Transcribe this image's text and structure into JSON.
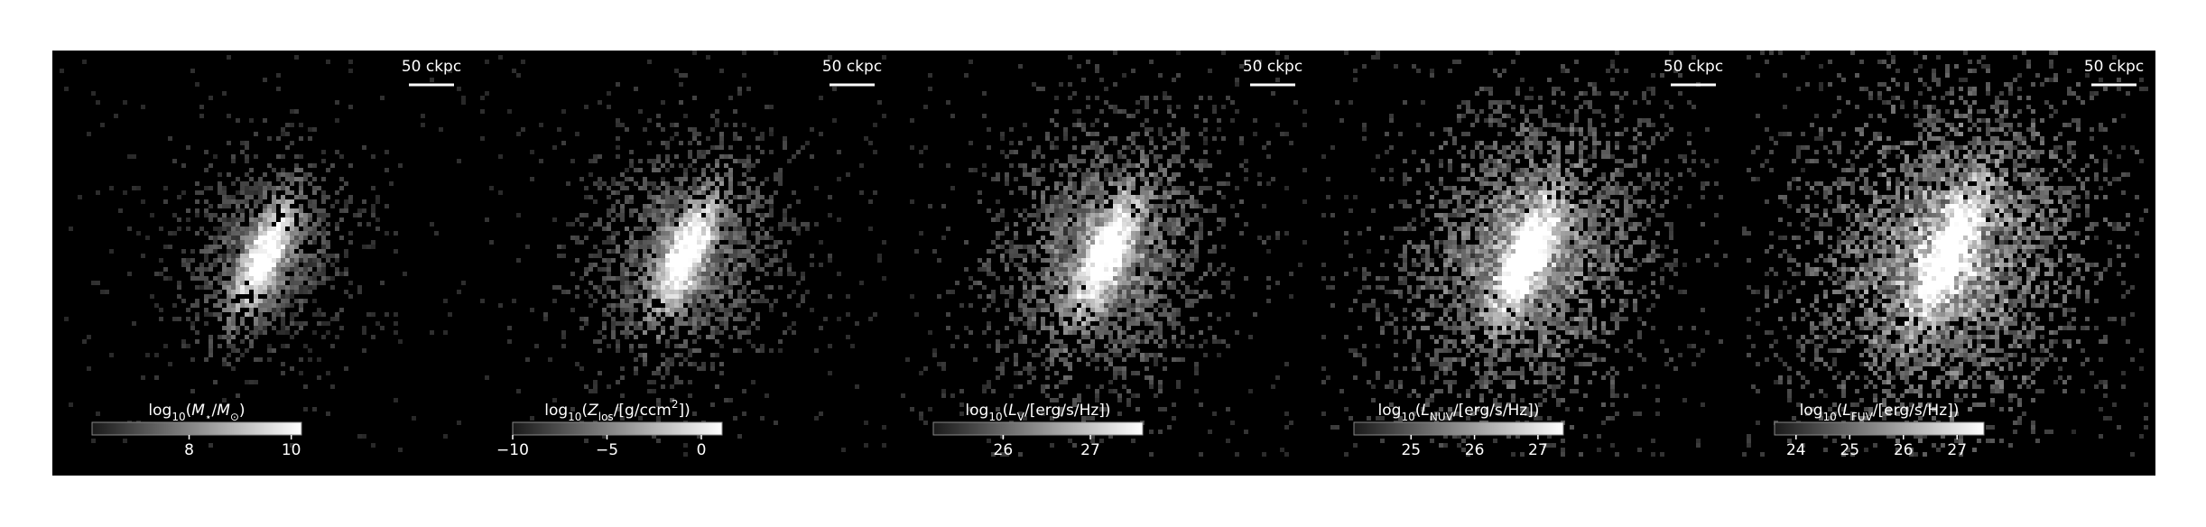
{
  "chart_data": [
    {
      "type": "image",
      "scalebar": "50 ckpc",
      "colorbar": {
        "label": [
          {
            "text": "log"
          },
          {
            "text": "10",
            "sub": true
          },
          {
            "text": "("
          },
          {
            "text": "M",
            "italic": true
          },
          {
            "text": "⋆",
            "sub": true
          },
          {
            "text": "/"
          },
          {
            "text": "M",
            "italic": true
          },
          {
            "text": "⊙",
            "sub": true
          },
          {
            "text": ")"
          }
        ],
        "lim": [
          6.1,
          10.2
        ],
        "ticks": [
          8,
          10
        ]
      }
    },
    {
      "type": "image",
      "scalebar": "50 ckpc",
      "colorbar": {
        "label": [
          {
            "text": "log"
          },
          {
            "text": "10",
            "sub": true
          },
          {
            "text": "("
          },
          {
            "text": "Z",
            "italic": true
          },
          {
            "text": "los",
            "sub": true
          },
          {
            "text": "/[g/ccm"
          },
          {
            "text": "2",
            "sup": true
          },
          {
            "text": "])"
          }
        ],
        "lim": [
          -10,
          1.1
        ],
        "ticks": [
          {
            "value": -10,
            "label": "−10"
          },
          {
            "value": -5,
            "label": "−5"
          },
          0
        ]
      }
    },
    {
      "type": "image",
      "scalebar": "50 ckpc",
      "colorbar": {
        "label": [
          {
            "text": "log"
          },
          {
            "text": "10",
            "sub": true
          },
          {
            "text": "("
          },
          {
            "text": "L",
            "italic": true
          },
          {
            "text": "V",
            "sub": true
          },
          {
            "text": "/[erg/s/Hz])"
          }
        ],
        "lim": [
          25.2,
          27.6
        ],
        "ticks": [
          26,
          27
        ]
      }
    },
    {
      "type": "image",
      "scalebar": "50 ckpc",
      "colorbar": {
        "label": [
          {
            "text": "log"
          },
          {
            "text": "10",
            "sub": true
          },
          {
            "text": "("
          },
          {
            "text": "L",
            "italic": true
          },
          {
            "text": "NUV",
            "sub": true
          },
          {
            "text": "/[erg/s/Hz])"
          }
        ],
        "lim": [
          24.1,
          27.4
        ],
        "ticks": [
          25,
          26,
          27
        ]
      }
    },
    {
      "type": "image",
      "scalebar": "50 ckpc",
      "colorbar": {
        "label": [
          {
            "text": "log"
          },
          {
            "text": "10",
            "sub": true
          },
          {
            "text": "("
          },
          {
            "text": "L",
            "italic": true
          },
          {
            "text": "FUV",
            "sub": true
          },
          {
            "text": "/[erg/s/Hz])"
          }
        ],
        "lim": [
          23.6,
          27.5
        ],
        "ticks": [
          24,
          25,
          26,
          27
        ]
      }
    }
  ]
}
